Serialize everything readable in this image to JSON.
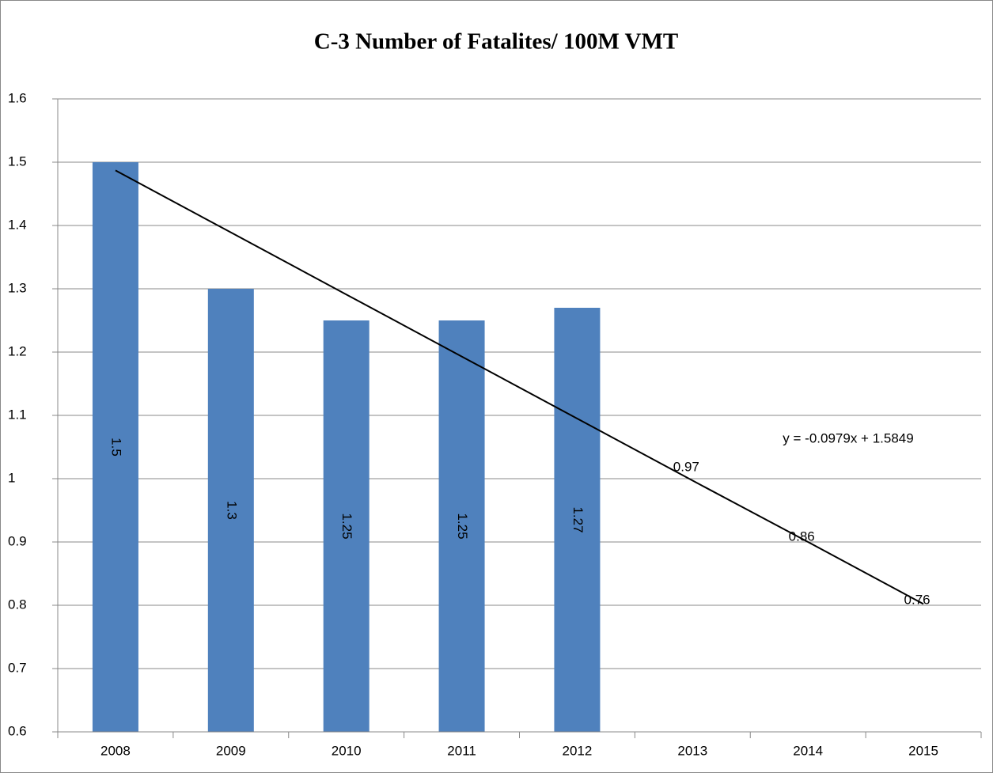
{
  "chart_data": {
    "type": "bar",
    "title": "C-3 Number of Fatalites/ 100M VMT",
    "categories": [
      "2008",
      "2009",
      "2010",
      "2011",
      "2012",
      "2013",
      "2014",
      "2015"
    ],
    "series": [
      {
        "type": "bar",
        "color": "#4f81bd",
        "values": [
          1.5,
          1.3,
          1.25,
          1.25,
          1.27,
          null,
          null,
          null
        ]
      },
      {
        "type": "line",
        "color": "#000000",
        "values": [
          1.487,
          1.389,
          1.291,
          1.193,
          1.095,
          0.997,
          0.9,
          0.802
        ]
      },
      {
        "type": "label",
        "values": [
          null,
          null,
          null,
          null,
          null,
          0.97,
          0.86,
          0.76
        ]
      }
    ],
    "annotations": [
      "y = -0.0979x + 1.5849"
    ],
    "ylim": [
      0.6,
      1.6
    ],
    "yticks": [
      0.6,
      0.7,
      0.8,
      0.9,
      1,
      1.1,
      1.2,
      1.3,
      1.4,
      1.5,
      1.6
    ],
    "grid": true
  }
}
